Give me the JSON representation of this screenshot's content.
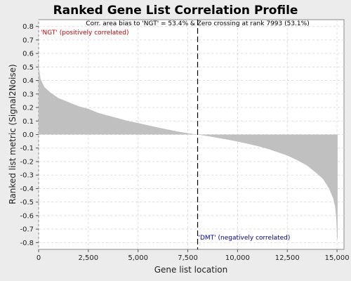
{
  "chart_data": {
    "type": "area",
    "title": "Ranked Gene List Correlation Profile",
    "xlabel": "Gene list location",
    "ylabel": "Ranked list metric (Signal2Noise)",
    "xlim": [
      0,
      15350
    ],
    "ylim": [
      -0.85,
      0.85
    ],
    "x_ticks": [
      0,
      2500,
      5000,
      7500,
      10000,
      12500,
      15000
    ],
    "x_tick_labels": [
      "0",
      "2,500",
      "5,000",
      "7,500",
      "10,000",
      "12,500",
      "15,000"
    ],
    "y_ticks": [
      0.8,
      0.7,
      0.6,
      0.5,
      0.4,
      0.3,
      0.2,
      0.1,
      0.0,
      -0.1,
      -0.2,
      -0.3,
      -0.4,
      -0.5,
      -0.6,
      -0.7,
      -0.8
    ],
    "y_tick_labels": [
      "0.8",
      "0.7",
      "0.6",
      "0.5",
      "0.4",
      "0.3",
      "0.2",
      "0.1",
      "0.0",
      "-0.1",
      "-0.2",
      "-0.3",
      "-0.4",
      "-0.5",
      "-0.6",
      "-0.7",
      "-0.8"
    ],
    "grid": true,
    "fill_color": "#c0c0c0",
    "zero_crossing_rank": 7993,
    "series": [
      {
        "x": [
          0,
          20,
          100,
          300,
          600,
          1000,
          1500,
          2000,
          2500,
          3000,
          3500,
          4000,
          4500,
          5000,
          5500,
          6000,
          6500,
          7000,
          7500,
          7993,
          8500,
          9000,
          9500,
          10000,
          10500,
          11000,
          11500,
          12000,
          12500,
          13000,
          13500,
          14000,
          14300,
          14600,
          14800,
          14900,
          14950,
          14980,
          15000,
          15030
        ],
        "y": [
          0.55,
          0.49,
          0.41,
          0.35,
          0.31,
          0.27,
          0.24,
          0.21,
          0.19,
          0.16,
          0.14,
          0.12,
          0.1,
          0.085,
          0.068,
          0.052,
          0.037,
          0.022,
          0.01,
          0.0,
          -0.012,
          -0.025,
          -0.038,
          -0.052,
          -0.068,
          -0.085,
          -0.105,
          -0.13,
          -0.155,
          -0.19,
          -0.23,
          -0.29,
          -0.33,
          -0.4,
          -0.47,
          -0.53,
          -0.6,
          -0.67,
          -0.77,
          -0.77
        ]
      }
    ],
    "annotations": {
      "top_text": "Corr. area bias to 'NGT' = 53.4% & Zero crossing at rank 7993 (53.1%)",
      "positive_label": "'NGT' (positively correlated)",
      "negative_label": "'DMT' (negatively correlated)",
      "positive_color": "#cc0000",
      "negative_color": "#000099"
    }
  }
}
